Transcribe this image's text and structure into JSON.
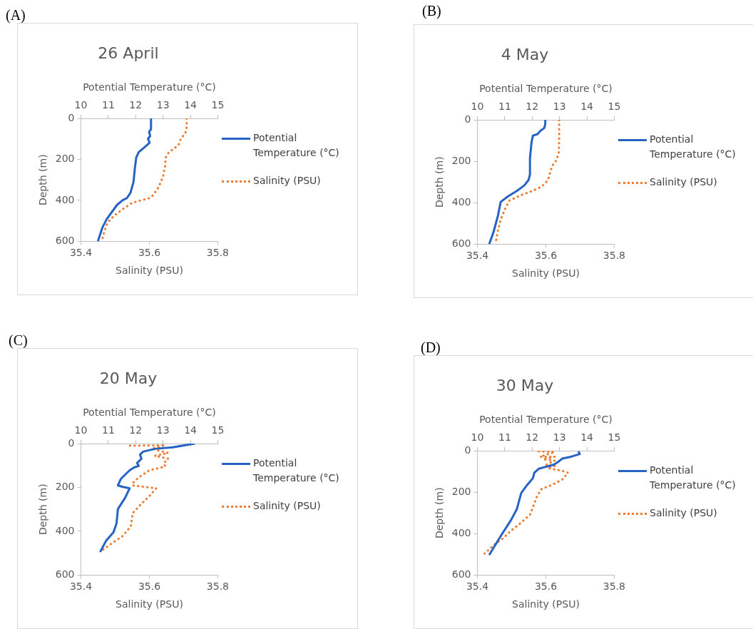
{
  "chart_data": [
    {
      "type": "line",
      "title": "26 April",
      "annotations": [
        "(A)"
      ],
      "xlabel": "Salinity (PSU)",
      "x2label": "Potential Temperature (°C)",
      "ylabel": "Depth (m)",
      "xlim": [
        35.4,
        35.8
      ],
      "xticks": [
        35.4,
        35.6,
        35.8
      ],
      "x2lim": [
        10,
        15
      ],
      "x2ticks": [
        10,
        11,
        12,
        13,
        14,
        15
      ],
      "ylim": [
        600,
        0
      ],
      "yticks": [
        0,
        200,
        400,
        600
      ],
      "legend": "right",
      "marker": "none",
      "series": [
        {
          "name": "Potential Temperature (°C)",
          "color": "#2563c4",
          "axis": "x2",
          "line_style": "solid",
          "x": [
            12.56,
            12.56,
            12.49,
            12.53,
            12.45,
            12.51,
            12.29,
            12.11,
            12.02,
            11.97,
            11.92,
            11.81,
            11.68,
            11.52,
            11.32,
            10.94,
            10.78,
            10.62
          ],
          "values": [
            0,
            53,
            66,
            86,
            99,
            119,
            145,
            165,
            191,
            244,
            310,
            363,
            389,
            400,
            422,
            492,
            534,
            600
          ]
        },
        {
          "name": "Salinity (PSU)",
          "color": "#ed7d31",
          "line_style": "dotted",
          "x": [
            35.709,
            35.709,
            35.705,
            35.692,
            35.687,
            35.674,
            35.657,
            35.648,
            35.646,
            35.64,
            35.627,
            35.61,
            35.601,
            35.575,
            35.549,
            35.523,
            35.497,
            35.478,
            35.467,
            35.461
          ],
          "values": [
            0,
            46,
            73,
            99,
            125,
            145,
            165,
            191,
            231,
            284,
            336,
            376,
            389,
            400,
            413,
            442,
            475,
            508,
            560,
            600
          ]
        }
      ]
    },
    {
      "type": "line",
      "title": "4 May",
      "annotations": [
        "(B)"
      ],
      "xlabel": "Salinity (PSU)",
      "x2label": "Potential Temperature (°C)",
      "ylabel": "Depth (m)",
      "xlim": [
        35.4,
        35.8
      ],
      "xticks": [
        35.4,
        35.6,
        35.8
      ],
      "x2lim": [
        10,
        15
      ],
      "x2ticks": [
        10,
        11,
        12,
        13,
        14,
        15
      ],
      "ylim": [
        600,
        0
      ],
      "yticks": [
        0,
        200,
        400,
        600
      ],
      "legend": "right",
      "marker": "none",
      "series": [
        {
          "name": "Potential Temperature (°C)",
          "color": "#2563c4",
          "axis": "x2",
          "line_style": "solid",
          "x": [
            12.48,
            12.48,
            12.44,
            12.3,
            12.2,
            12.03,
            11.98,
            11.92,
            11.92,
            11.87,
            11.71,
            11.44,
            11.12,
            10.85,
            10.75,
            10.59,
            10.43
          ],
          "values": [
            0,
            20,
            40,
            53,
            69,
            76,
            106,
            185,
            264,
            290,
            317,
            343,
            369,
            396,
            462,
            541,
            600
          ]
        },
        {
          "name": "Salinity (PSU)",
          "color": "#ed7d31",
          "line_style": "dotted",
          "x": [
            35.639,
            35.639,
            35.638,
            35.631,
            35.618,
            35.609,
            35.603,
            35.587,
            35.561,
            35.528,
            35.494,
            35.481,
            35.468,
            35.459,
            35.453
          ],
          "values": [
            0,
            106,
            158,
            195,
            224,
            277,
            297,
            323,
            343,
            363,
            389,
            429,
            481,
            541,
            600
          ]
        }
      ]
    },
    {
      "type": "line",
      "title": "20 May",
      "annotations": [
        "(C)"
      ],
      "xlabel": "Salinity (PSU)",
      "x2label": "Potential Temperature (°C)",
      "ylabel": "Depth (m)",
      "xlim": [
        35.4,
        35.8
      ],
      "xticks": [
        35.4,
        35.6,
        35.8
      ],
      "x2lim": [
        10,
        15
      ],
      "x2ticks": [
        10,
        11,
        12,
        13,
        14,
        15
      ],
      "ylim": [
        600,
        0
      ],
      "yticks": [
        0,
        200,
        400,
        600
      ],
      "legend": "right",
      "marker": "none",
      "series": [
        {
          "name": "Potential Temperature (°C)",
          "color": "#2563c4",
          "axis": "x2",
          "line_style": "solid",
          "x": [
            14.16,
            13.78,
            13.35,
            12.7,
            12.27,
            12.16,
            12.21,
            12.05,
            12.11,
            11.94,
            11.78,
            11.67,
            11.46,
            11.35,
            11.51,
            11.78,
            11.62,
            11.35,
            11.3,
            11.19,
            10.92,
            10.7
          ],
          "values": [
            0,
            8,
            17,
            24,
            37,
            50,
            69,
            89,
            102,
            109,
            122,
            135,
            161,
            191,
            197,
            204,
            246,
            299,
            364,
            404,
            443,
            495
          ]
        },
        {
          "name": "Salinity (PSU)",
          "color": "#ed7d31",
          "line_style": "dotted",
          "x": [
            35.543,
            35.646,
            35.607,
            35.655,
            35.616,
            35.655,
            35.642,
            35.646,
            35.6,
            35.568,
            35.551,
            35.551,
            35.62,
            35.6,
            35.574,
            35.551,
            35.546,
            35.521,
            35.495,
            35.46
          ],
          "values": [
            10,
            8,
            24,
            43,
            56,
            69,
            89,
            105,
            122,
            155,
            181,
            191,
            204,
            240,
            279,
            318,
            377,
            423,
            450,
            489
          ]
        }
      ]
    },
    {
      "type": "line",
      "title": "30 May",
      "annotations": [
        "(D)"
      ],
      "xlabel": "Salinity (PSU)",
      "x2label": "Potential Temperature (°C)",
      "ylabel": "Depth (m)",
      "xlim": [
        35.4,
        35.8
      ],
      "xticks": [
        35.4,
        35.6,
        35.8
      ],
      "x2lim": [
        10,
        15
      ],
      "x2ticks": [
        10,
        11,
        12,
        13,
        14,
        15
      ],
      "ylim": [
        600,
        0
      ],
      "yticks": [
        0,
        200,
        400,
        600
      ],
      "legend": "right",
      "marker": "none",
      "series": [
        {
          "name": "Potential Temperature (°C)",
          "color": "#2563c4",
          "axis": "x2",
          "line_style": "solid",
          "x": [
            13.69,
            13.74,
            13.42,
            13.1,
            12.94,
            12.78,
            12.24,
            12.08,
            12.03,
            11.82,
            11.6,
            11.44,
            11.23,
            10.85,
            10.43
          ],
          "values": [
            3,
            16,
            29,
            38,
            55,
            68,
            87,
            106,
            132,
            165,
            204,
            282,
            334,
            412,
            503
          ]
        },
        {
          "name": "Salinity (PSU)",
          "color": "#ed7d31",
          "line_style": "dotted",
          "x": [
            35.579,
            35.626,
            35.583,
            35.626,
            35.592,
            35.626,
            35.601,
            35.626,
            35.605,
            35.648,
            35.665,
            35.648,
            35.618,
            35.588,
            35.575,
            35.566,
            35.554,
            35.528,
            35.498,
            35.473,
            35.451,
            35.421
          ],
          "values": [
            3,
            6,
            29,
            29,
            42,
            48,
            68,
            74,
            84,
            97,
            106,
            139,
            165,
            184,
            217,
            256,
            308,
            347,
            386,
            425,
            451,
            496
          ]
        }
      ]
    }
  ]
}
